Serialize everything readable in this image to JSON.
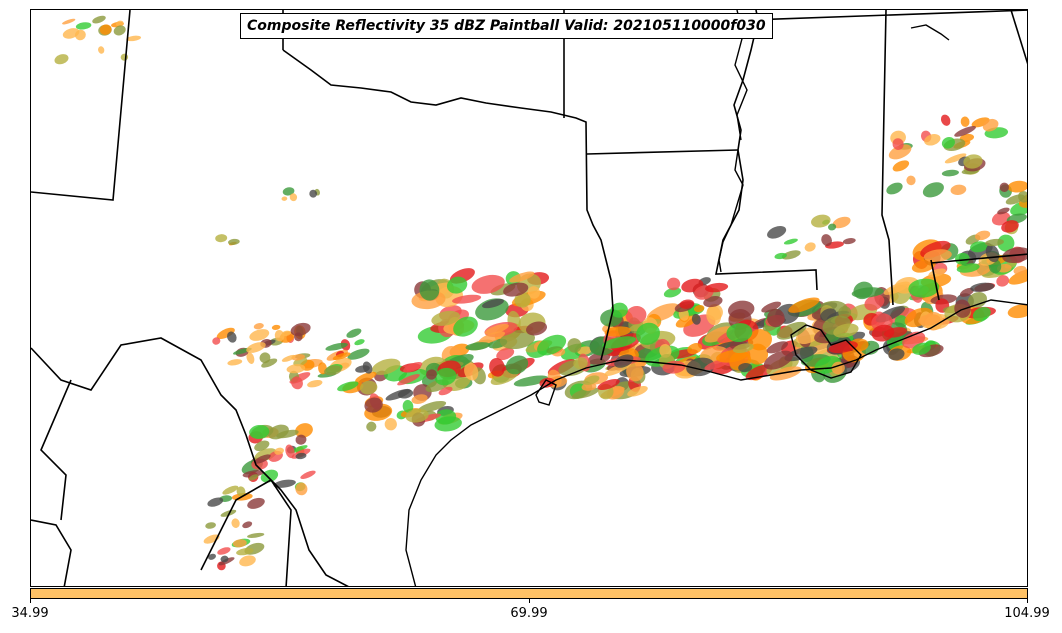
{
  "title": "Composite Reflectivity 35 dBZ Paintball Valid: 202105110000f030",
  "colorbar": {
    "color": "#ffc266",
    "tick_labels": [
      "34.99",
      "69.99",
      "104.99"
    ]
  },
  "member_colors": [
    "#f24d4d",
    "#e31a1c",
    "#ff8c00",
    "#ffa040",
    "#ffb74d",
    "#33cc33",
    "#3c9a3c",
    "#8c9a3c",
    "#b5b040",
    "#8b3a3a",
    "#4a4a4a"
  ],
  "map": {
    "region": "Texas / Louisiana / Gulf Coast",
    "features": [
      "state-boundaries",
      "coastline",
      "rivers"
    ]
  }
}
